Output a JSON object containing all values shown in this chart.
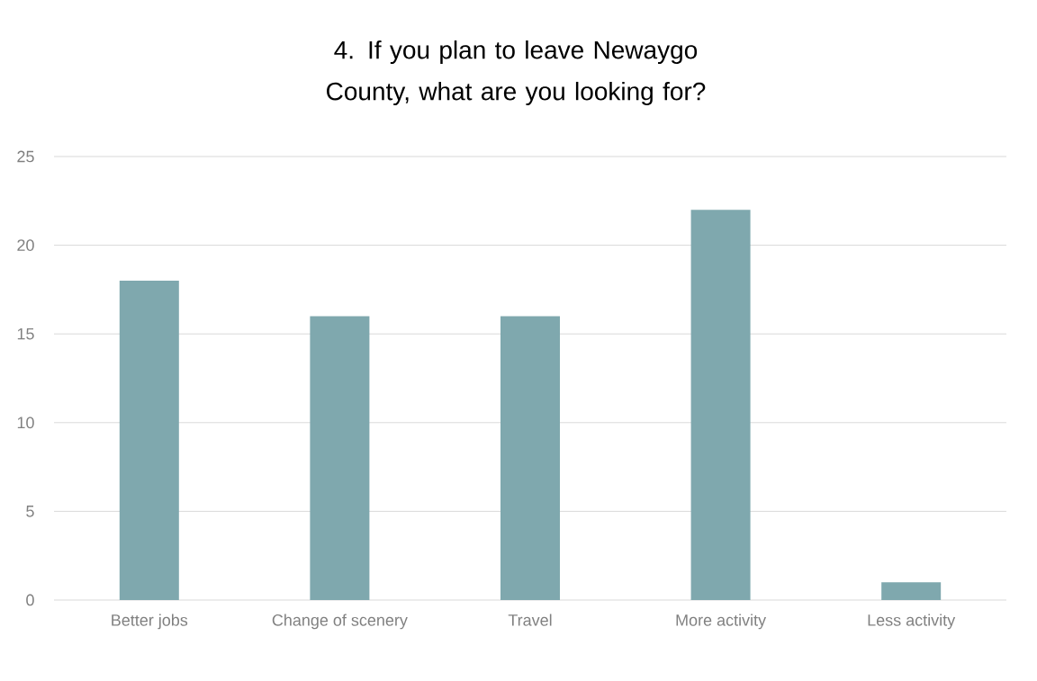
{
  "chart_data": {
    "type": "bar",
    "title": "4. If you plan to leave Newaygo County, what are you looking for?",
    "categories": [
      "Better jobs",
      "Change of scenery",
      "Travel",
      "More activity",
      "Less activity"
    ],
    "values": [
      18,
      16,
      16,
      22,
      1
    ],
    "color": "#7fa8ae",
    "ylim": [
      0,
      25
    ],
    "yticks": [
      0,
      5,
      10,
      15,
      20,
      25
    ],
    "grid": "y"
  }
}
